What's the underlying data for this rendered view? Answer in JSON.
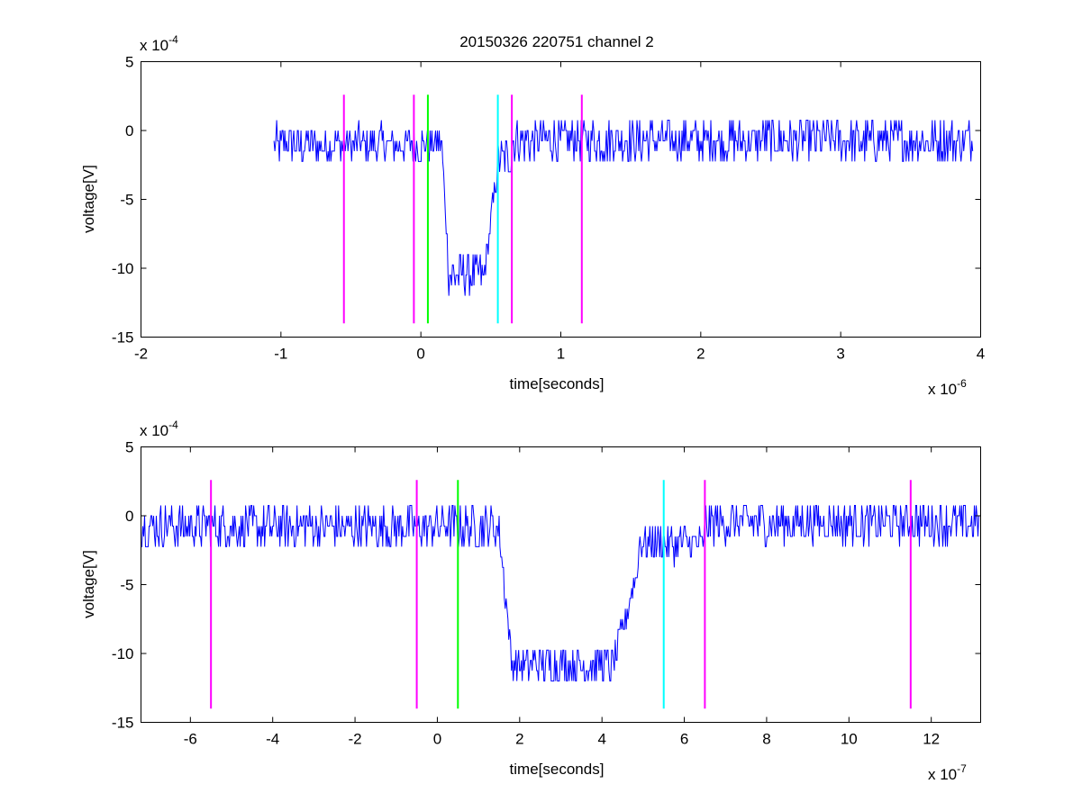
{
  "figure_title": "20150326 220751 channel 2",
  "chart_data": [
    {
      "type": "line",
      "title": "20150326 220751 channel 2",
      "xlabel": "time[seconds]",
      "ylabel": "voltage[V]",
      "x_exponent_label": "x 10",
      "x_exponent": "-6",
      "y_exponent_label": "x 10",
      "y_exponent": "-4",
      "xlim": [
        -2,
        4
      ],
      "ylim": [
        -15,
        5
      ],
      "xticks": [
        "-2",
        "-1",
        "0",
        "1",
        "2",
        "3",
        "4"
      ],
      "yticks": [
        "5",
        "0",
        "-5",
        "-10",
        "-15"
      ],
      "series": [
        {
          "color": "#0000ff",
          "segments": [
            {
              "x0": -1.05,
              "x1": 0.15,
              "mean": -1.0,
              "noise": 1.0
            },
            {
              "x0": 0.15,
              "x1": 0.2,
              "mean_start": -1.0,
              "mean_end": -10.5,
              "noise": 0.8
            },
            {
              "x0": 0.2,
              "x1": 0.45,
              "mean": -10.5,
              "noise": 1.1
            },
            {
              "x0": 0.45,
              "x1": 0.55,
              "mean_start": -10.5,
              "mean_end": -2.5,
              "noise": 0.8
            },
            {
              "x0": 0.55,
              "x1": 0.65,
              "mean": -2.0,
              "noise": 1.0
            },
            {
              "x0": 0.65,
              "x1": 3.95,
              "mean": -0.7,
              "noise": 1.1
            }
          ]
        }
      ],
      "markers": [
        {
          "x": -0.55,
          "color": "#ff00ff"
        },
        {
          "x": -0.05,
          "color": "#ff00ff"
        },
        {
          "x": 0.05,
          "color": "#00ff00"
        },
        {
          "x": 0.55,
          "color": "#00ffff"
        },
        {
          "x": 0.65,
          "color": "#ff00ff"
        },
        {
          "x": 1.15,
          "color": "#ff00ff"
        }
      ],
      "marker_y_range": [
        -14,
        2.6
      ]
    },
    {
      "type": "line",
      "title": "",
      "xlabel": "time[seconds]",
      "ylabel": "voltage[V]",
      "x_exponent_label": "x 10",
      "x_exponent": "-7",
      "y_exponent_label": "x 10",
      "y_exponent": "-4",
      "xlim": [
        -7.2,
        13.2
      ],
      "ylim": [
        -15,
        5
      ],
      "xticks": [
        "-6",
        "-4",
        "-2",
        "0",
        "2",
        "4",
        "6",
        "8",
        "10",
        "12"
      ],
      "yticks": [
        "5",
        "0",
        "-5",
        "-10",
        "-15"
      ],
      "series": [
        {
          "color": "#0000ff",
          "segments": [
            {
              "x0": -7.2,
              "x1": 1.5,
              "mean": -0.8,
              "noise": 1.1
            },
            {
              "x0": 1.5,
              "x1": 1.8,
              "mean_start": -1.0,
              "mean_end": -10.5,
              "noise": 0.7
            },
            {
              "x0": 1.8,
              "x1": 4.3,
              "mean": -10.8,
              "noise": 1.0
            },
            {
              "x0": 4.3,
              "x1": 4.9,
              "mean_start": -10.5,
              "mean_end": -3.5,
              "noise": 0.7
            },
            {
              "x0": 4.9,
              "x1": 6.5,
              "mean": -2.0,
              "noise": 1.0
            },
            {
              "x0": 6.5,
              "x1": 13.2,
              "mean": -0.5,
              "noise": 1.1
            }
          ]
        }
      ],
      "markers": [
        {
          "x": -5.5,
          "color": "#ff00ff"
        },
        {
          "x": -0.5,
          "color": "#ff00ff"
        },
        {
          "x": 0.5,
          "color": "#00ff00"
        },
        {
          "x": 5.5,
          "color": "#00ffff"
        },
        {
          "x": 6.5,
          "color": "#ff00ff"
        },
        {
          "x": 11.5,
          "color": "#ff00ff"
        }
      ],
      "marker_y_range": [
        -14,
        2.6
      ]
    }
  ]
}
